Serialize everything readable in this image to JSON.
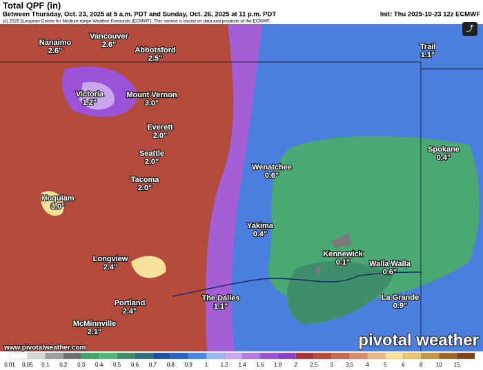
{
  "header": {
    "title": "Total QPF (in)",
    "subtitle": "Between Thursday, Oct. 23, 2025 at 5 a.m. PDT and Sunday, Oct. 26, 2025 at 11 p.m. PDT",
    "init": "Init: Thu 2025-10-23 12z ECMWF",
    "copyright": "(c) 2025 European Centre for Medium-range Weather Forecasts (ECMWF). This service is based on data and products of the ECMWF."
  },
  "cities": [
    {
      "name": "Nanaimo",
      "value": "2.6\""
    },
    {
      "name": "Vancouver",
      "value": "2.6\""
    },
    {
      "name": "Abbotsford",
      "value": "2.5\""
    },
    {
      "name": "Victoria",
      "value": "1.2\""
    },
    {
      "name": "Mount Vernon",
      "value": "3.0\""
    },
    {
      "name": "Everett",
      "value": "2.0\""
    },
    {
      "name": "Seattle",
      "value": "2.0\""
    },
    {
      "name": "Tacoma",
      "value": "2.0\""
    },
    {
      "name": "Hoquiam",
      "value": "3.0\""
    },
    {
      "name": "Wenatchee",
      "value": "0.6\""
    },
    {
      "name": "Spokane",
      "value": "0.4\""
    },
    {
      "name": "Trail",
      "value": "1.1\""
    },
    {
      "name": "Yakima",
      "value": "0.4\""
    },
    {
      "name": "Kennewick",
      "value": "0.1\""
    },
    {
      "name": "Walla Walla",
      "value": "0.6\""
    },
    {
      "name": "Longview",
      "value": "2.4\""
    },
    {
      "name": "Portland",
      "value": "2.4\""
    },
    {
      "name": "The Dalles",
      "value": "1.1\""
    },
    {
      "name": "McMinnville",
      "value": "2.1\""
    },
    {
      "name": "La Grande",
      "value": "0.9\""
    }
  ],
  "footer": {
    "website": "www.pivotalweather.com",
    "logo": "pivotal weather"
  },
  "legend": [
    {
      "label": "0.01",
      "color": "#ffffff"
    },
    {
      "label": "0.05",
      "color": "#d6d6d6"
    },
    {
      "label": "0.1",
      "color": "#9e9e9e"
    },
    {
      "label": "0.2",
      "color": "#6f6f6f"
    },
    {
      "label": "0.3",
      "color": "#3fa566"
    },
    {
      "label": "0.4",
      "color": "#4fb879"
    },
    {
      "label": "0.5",
      "color": "#3f8e6a"
    },
    {
      "label": "0.6",
      "color": "#2f6f78"
    },
    {
      "label": "0.7",
      "color": "#1f4fa0"
    },
    {
      "label": "0.8",
      "color": "#2c62c9"
    },
    {
      "label": "0.9",
      "color": "#4a86e3"
    },
    {
      "label": "1",
      "color": "#9ab9f0"
    },
    {
      "label": "1.2",
      "color": "#c9a8ee"
    },
    {
      "label": "1.4",
      "color": "#b27ce6"
    },
    {
      "label": "1.6",
      "color": "#9a52d8"
    },
    {
      "label": "1.8",
      "color": "#8a3fc5"
    },
    {
      "label": "2",
      "color": "#a8323b"
    },
    {
      "label": "2.5",
      "color": "#bb4a3c"
    },
    {
      "label": "3",
      "color": "#c9664c"
    },
    {
      "label": "3.5",
      "color": "#d98b6a"
    },
    {
      "label": "4",
      "color": "#e8b88a"
    },
    {
      "label": "5",
      "color": "#f5e29a"
    },
    {
      "label": "6",
      "color": "#e8c86a"
    },
    {
      "label": "8",
      "color": "#c89640"
    },
    {
      "label": "10",
      "color": "#a06828"
    },
    {
      "label": "15",
      "color": "#7a4418"
    }
  ]
}
